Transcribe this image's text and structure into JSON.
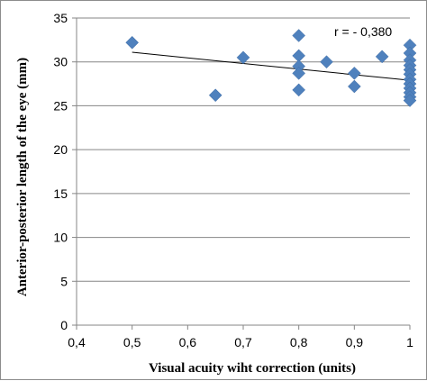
{
  "chart_data": {
    "type": "scatter",
    "xlabel": "Visual acuity wiht correction (units)",
    "ylabel": "Anterior-posterior length of the eye (mm)",
    "xlim": [
      0.4,
      1.0
    ],
    "ylim": [
      0,
      35
    ],
    "xticks": [
      "0,4",
      "0,5",
      "0,6",
      "0,7",
      "0,8",
      "0,9",
      "1"
    ],
    "yticks": [
      "0",
      "5",
      "10",
      "15",
      "20",
      "25",
      "30",
      "35"
    ],
    "grid": "horizontal",
    "annotation": "r = - 0,380",
    "marker_color": "#4F81BD",
    "points": [
      {
        "x": 0.5,
        "y": 32.2
      },
      {
        "x": 0.65,
        "y": 26.2
      },
      {
        "x": 0.7,
        "y": 30.5
      },
      {
        "x": 0.8,
        "y": 33.0
      },
      {
        "x": 0.8,
        "y": 30.7
      },
      {
        "x": 0.8,
        "y": 29.5
      },
      {
        "x": 0.8,
        "y": 28.7
      },
      {
        "x": 0.8,
        "y": 26.8
      },
      {
        "x": 0.85,
        "y": 30.0
      },
      {
        "x": 0.9,
        "y": 28.7
      },
      {
        "x": 0.9,
        "y": 27.2
      },
      {
        "x": 0.95,
        "y": 30.6
      },
      {
        "x": 1.0,
        "y": 31.9
      },
      {
        "x": 1.0,
        "y": 31.0
      },
      {
        "x": 1.0,
        "y": 30.2
      },
      {
        "x": 1.0,
        "y": 29.6
      },
      {
        "x": 1.0,
        "y": 29.1
      },
      {
        "x": 1.0,
        "y": 28.6
      },
      {
        "x": 1.0,
        "y": 28.0
      },
      {
        "x": 1.0,
        "y": 27.5
      },
      {
        "x": 1.0,
        "y": 27.0
      },
      {
        "x": 1.0,
        "y": 26.5
      },
      {
        "x": 1.0,
        "y": 26.0
      },
      {
        "x": 1.0,
        "y": 25.6
      }
    ],
    "trendline": {
      "x": [
        0.5,
        1.0
      ],
      "y": [
        31.1,
        27.9
      ]
    }
  }
}
